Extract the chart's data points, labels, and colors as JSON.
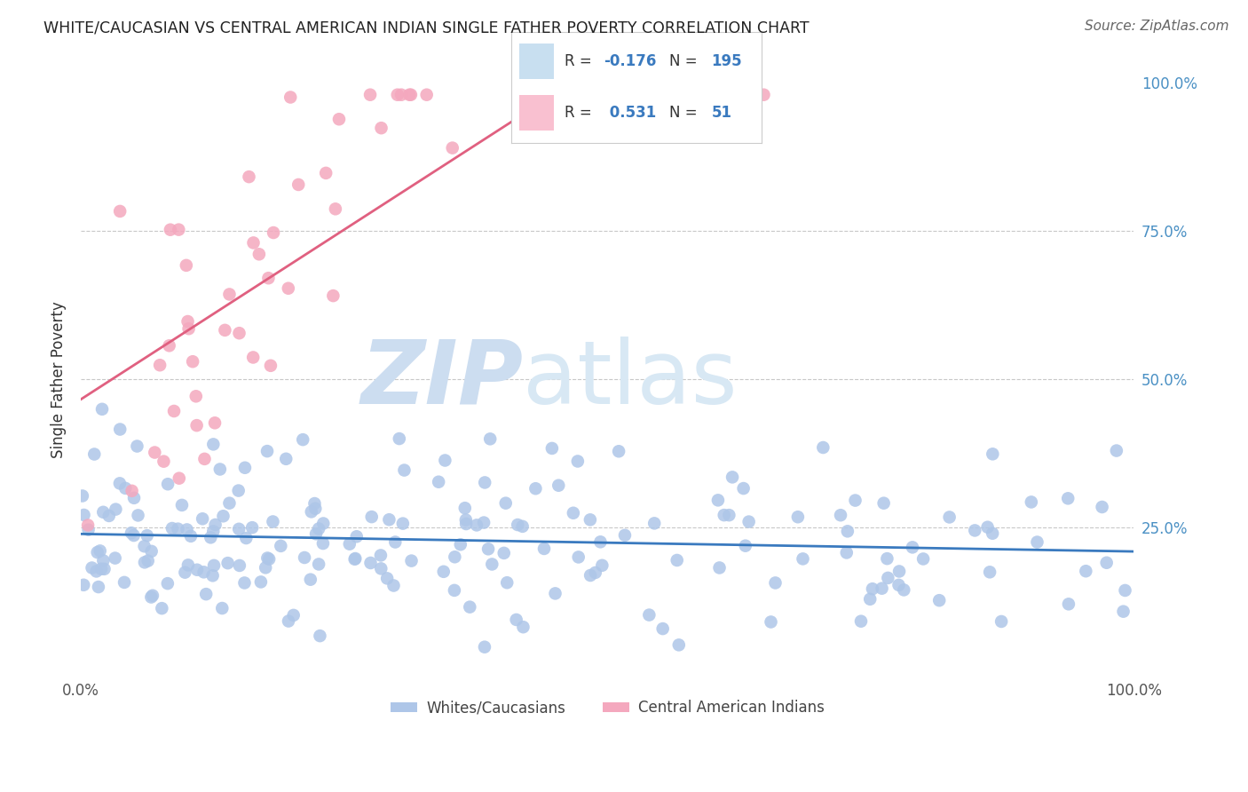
{
  "title": "WHITE/CAUCASIAN VS CENTRAL AMERICAN INDIAN SINGLE FATHER POVERTY CORRELATION CHART",
  "source": "Source: ZipAtlas.com",
  "ylabel": "Single Father Poverty",
  "watermark_zip": "ZIP",
  "watermark_atlas": "atlas",
  "blue_label": "Whites/Caucasians",
  "pink_label": "Central American Indians",
  "blue_R": -0.176,
  "blue_N": 195,
  "pink_R": 0.531,
  "pink_N": 51,
  "blue_color": "#aec6e8",
  "pink_color": "#f4a8be",
  "blue_line_color": "#3a7abf",
  "pink_line_color": "#e06080",
  "background_color": "#ffffff",
  "grid_color": "#c8c8c8",
  "title_color": "#222222",
  "source_color": "#666666",
  "right_tick_color": "#4a90c4",
  "legend_blue_box": "#c8dff0",
  "legend_pink_box": "#f9c0d0",
  "legend_border": "#cccccc",
  "legend_R_color": "#222222",
  "legend_N_color": "#3a7abf"
}
